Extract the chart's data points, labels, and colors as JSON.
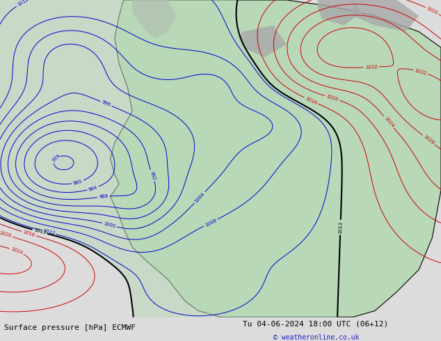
{
  "title_left": "Surface pressure [hPa] ECMWF",
  "title_right": "Tu 04-06-2024 18:00 UTC (06+12)",
  "copyright": "© weatheronline.co.uk",
  "bg_color": "#dcdcdc",
  "land_color": "#b8d8b8",
  "grey_color": "#a8a8a8",
  "font_size_bottom": 8,
  "isobar_interval": 4,
  "black_level": 1013
}
